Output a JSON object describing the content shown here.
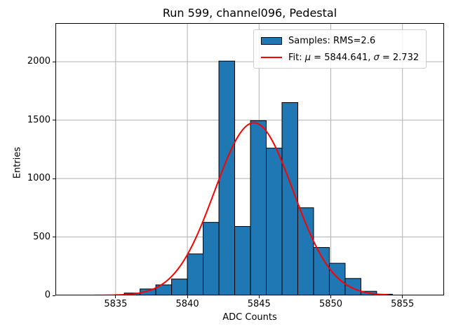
{
  "chart_data": {
    "type": "bar",
    "title": "Run 599, channel096, Pedestal",
    "xlabel": "ADC Counts",
    "ylabel": "Entries",
    "xlim": [
      5830.8,
      5857.9
    ],
    "ylim": [
      0,
      2330
    ],
    "xticks": [
      5835,
      5840,
      5845,
      5850,
      5855
    ],
    "yticks": [
      0,
      500,
      1000,
      1500,
      2000
    ],
    "grid": true,
    "grid_color": "#b0b0b0",
    "background": "#ffffff",
    "legend_position": "upper right",
    "histogram": {
      "label": "Samples: RMS=2.6",
      "rms": 2.6,
      "bin_start": 5832.3,
      "bin_width": 1.1,
      "counts": [
        2,
        2,
        3,
        20,
        55,
        90,
        140,
        355,
        625,
        2005,
        590,
        1495,
        1260,
        1650,
        750,
        410,
        275,
        145,
        35,
        10
      ],
      "fill_color": "#1f77b4",
      "edge_color": "#000000"
    },
    "fit": {
      "label_parts": [
        "Fit: ",
        "μ",
        " = 5844.641, ",
        "σ",
        " = 2.732"
      ],
      "mu": 5844.641,
      "sigma": 2.732,
      "amplitude": 1477,
      "x_range": [
        5832.0,
        5854.0
      ],
      "color": "#ff0000",
      "line_width": 2
    }
  }
}
